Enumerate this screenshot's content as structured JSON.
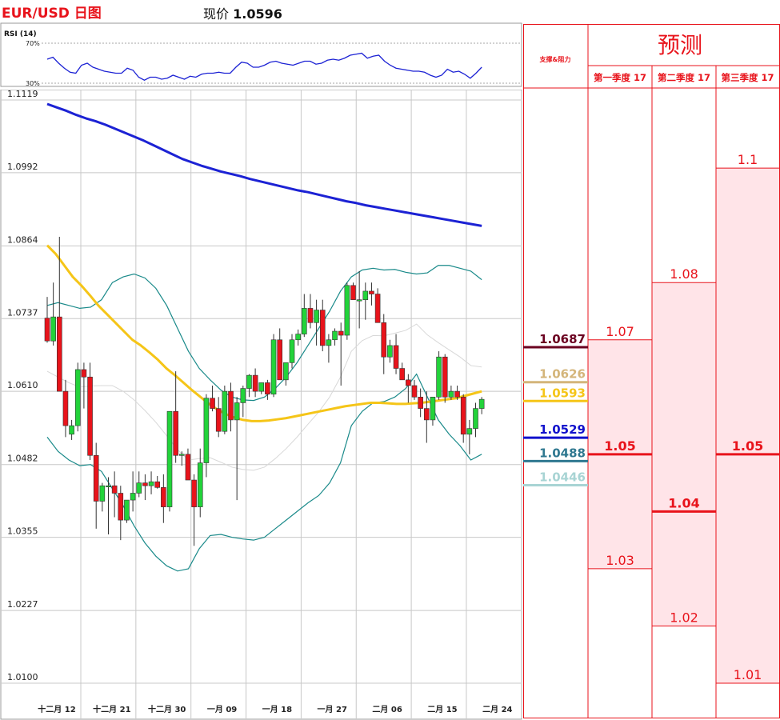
{
  "header": {
    "title": "EUR/USD 日图",
    "price_label": "现价",
    "price_value": "1.0596"
  },
  "rsi": {
    "label": "RSI (14)",
    "levels": [
      "70%",
      "30%"
    ],
    "level_values": [
      70,
      30
    ],
    "values": [
      54,
      56,
      50,
      45,
      41,
      40,
      48,
      50,
      46,
      44,
      42,
      41,
      40,
      40,
      45,
      43,
      36,
      33,
      36,
      36,
      34,
      35,
      38,
      36,
      34,
      37,
      36,
      39,
      40,
      40,
      41,
      40,
      40,
      46,
      51,
      50,
      46,
      46,
      48,
      51,
      52,
      50,
      49,
      48,
      50,
      52,
      52,
      49,
      50,
      53,
      54,
      53,
      55,
      58,
      59,
      60,
      55,
      57,
      58,
      52,
      48,
      45,
      44,
      43,
      42,
      42,
      41,
      38,
      36,
      38,
      44,
      41,
      42,
      39,
      35,
      40,
      46
    ],
    "color": "#1c22d4"
  },
  "chart_data": {
    "type": "candlestick",
    "title": "",
    "ylim": [
      1.01,
      1.1119
    ],
    "y_ticks": [
      "1.1119",
      "1.0992",
      "1.0864",
      "1.0737",
      "1.0610",
      "1.0482",
      "1.0355",
      "1.0227",
      "1.0100"
    ],
    "y_tick_values": [
      1.1119,
      1.0992,
      1.0864,
      1.0737,
      1.061,
      1.0482,
      1.0355,
      1.0227,
      1.01
    ],
    "x_ticks": [
      "十二月 12",
      "十二月 21",
      "十二月 30",
      "一月 09",
      "一月 18",
      "一月 27",
      "二月 06",
      "二月 15",
      "二月 24"
    ],
    "x_tick_index": [
      0,
      9,
      18,
      27,
      36,
      45,
      54,
      63,
      72
    ],
    "up_color": "#22d33a",
    "down_color": "#e8131b",
    "candles": [
      [
        1.0738,
        1.0775,
        1.0695,
        1.0698
      ],
      [
        1.0698,
        1.08,
        1.069,
        1.074
      ],
      [
        1.074,
        1.088,
        1.061,
        1.061
      ],
      [
        1.061,
        1.063,
        1.053,
        1.055
      ],
      [
        1.0535,
        1.056,
        1.0525,
        1.055
      ],
      [
        1.055,
        1.066,
        1.054,
        1.0648
      ],
      [
        1.0648,
        1.066,
        1.058,
        1.0635
      ],
      [
        1.0635,
        1.066,
        1.049,
        1.0498
      ],
      [
        1.0498,
        1.052,
        1.037,
        1.0418
      ],
      [
        1.0418,
        1.045,
        1.04,
        1.0445
      ],
      [
        1.0445,
        1.046,
        1.036,
        1.0445
      ],
      [
        1.0445,
        1.047,
        1.039,
        1.0432
      ],
      [
        1.0432,
        1.0445,
        1.035,
        1.0385
      ],
      [
        1.0385,
        1.042,
        1.038,
        1.042
      ],
      [
        1.042,
        1.047,
        1.04,
        1.0432
      ],
      [
        1.0432,
        1.047,
        1.0425,
        1.045
      ],
      [
        1.045,
        1.0465,
        1.042,
        1.0445
      ],
      [
        1.0445,
        1.047,
        1.043,
        1.0452
      ],
      [
        1.0452,
        1.0462,
        1.044,
        1.0442
      ],
      [
        1.0442,
        1.0465,
        1.038,
        1.0408
      ],
      [
        1.0408,
        1.0575,
        1.04,
        1.0575
      ],
      [
        1.0575,
        1.0645,
        1.0485,
        1.0498
      ],
      [
        1.0498,
        1.0505,
        1.048,
        1.05
      ],
      [
        1.05,
        1.051,
        1.046,
        1.0455
      ],
      [
        1.0455,
        1.0465,
        1.034,
        1.0408
      ],
      [
        1.0408,
        1.051,
        1.039,
        1.0485
      ],
      [
        1.0485,
        1.0605,
        1.046,
        1.0598
      ],
      [
        1.0598,
        1.062,
        1.0575,
        1.058
      ],
      [
        1.058,
        1.06,
        1.053,
        1.054
      ],
      [
        1.054,
        1.062,
        1.0535,
        1.061
      ],
      [
        1.061,
        1.0625,
        1.054,
        1.056
      ],
      [
        1.056,
        1.06,
        1.042,
        1.059
      ],
      [
        1.059,
        1.062,
        1.0565,
        1.0615
      ],
      [
        1.0615,
        1.064,
        1.06,
        1.0638
      ],
      [
        1.0638,
        1.065,
        1.06,
        1.061
      ],
      [
        1.061,
        1.0625,
        1.0605,
        1.0625
      ],
      [
        1.0625,
        1.063,
        1.0595,
        1.0605
      ],
      [
        1.0605,
        1.071,
        1.06,
        1.07
      ],
      [
        1.07,
        1.072,
        1.063,
        1.063
      ],
      [
        1.063,
        1.066,
        1.062,
        1.066
      ],
      [
        1.066,
        1.071,
        1.065,
        1.07
      ],
      [
        1.07,
        1.0718,
        1.069,
        1.071
      ],
      [
        1.071,
        1.078,
        1.0705,
        1.0755
      ],
      [
        1.0755,
        1.078,
        1.072,
        1.073
      ],
      [
        1.073,
        1.077,
        1.069,
        1.0752
      ],
      [
        1.0752,
        1.077,
        1.068,
        1.069
      ],
      [
        1.069,
        1.071,
        1.066,
        1.07
      ],
      [
        1.07,
        1.072,
        1.069,
        1.0715
      ],
      [
        1.0715,
        1.073,
        1.062,
        1.0708
      ],
      [
        1.0708,
        1.08,
        1.07,
        1.0795
      ],
      [
        1.0795,
        1.08,
        1.077,
        1.077
      ],
      [
        1.077,
        1.082,
        1.072,
        1.077
      ],
      [
        1.077,
        1.08,
        1.0735,
        1.0785
      ],
      [
        1.0785,
        1.08,
        1.076,
        1.078
      ],
      [
        1.078,
        1.079,
        1.073,
        1.073
      ],
      [
        1.073,
        1.0745,
        1.064,
        1.067
      ],
      [
        1.067,
        1.07,
        1.066,
        1.069
      ],
      [
        1.069,
        1.071,
        1.064,
        1.065
      ],
      [
        1.065,
        1.066,
        1.063,
        1.063
      ],
      [
        1.063,
        1.064,
        1.059,
        1.062
      ],
      [
        1.062,
        1.063,
        1.0595,
        1.06
      ],
      [
        1.06,
        1.0615,
        1.0565,
        1.058
      ],
      [
        1.058,
        1.061,
        1.052,
        1.056
      ],
      [
        1.056,
        1.06,
        1.055,
        1.06
      ],
      [
        1.06,
        1.068,
        1.0595,
        1.067
      ],
      [
        1.067,
        1.0675,
        1.059,
        1.06
      ],
      [
        1.06,
        1.062,
        1.0595,
        1.061
      ],
      [
        1.061,
        1.062,
        1.0595,
        1.06
      ],
      [
        1.06,
        1.0605,
        1.052,
        1.0535
      ],
      [
        1.0535,
        1.056,
        1.05,
        1.0545
      ],
      [
        1.0545,
        1.059,
        1.053,
        1.058
      ],
      [
        1.058,
        1.06,
        1.057,
        1.0596
      ]
    ],
    "ma_series": [
      {
        "color": "#1c22d4",
        "values": [
          1.1112,
          1.1106,
          1.11,
          1.1093,
          1.1087,
          1.1082,
          1.1076,
          1.1069,
          1.1062,
          1.1055,
          1.1048,
          1.104,
          1.1032,
          1.1024,
          1.1016,
          1.101,
          1.1004,
          1.0999,
          1.0994,
          1.099,
          1.0986,
          1.0981,
          1.0977,
          1.0973,
          1.0969,
          1.0965,
          1.0961,
          1.0958,
          1.0954,
          1.095,
          1.0946,
          1.0942,
          1.0939,
          1.0935,
          1.0932,
          1.0929,
          1.0926,
          1.0923,
          1.092,
          1.0917,
          1.0914,
          1.0911,
          1.0908,
          1.0905,
          1.0902,
          1.0899
        ]
      },
      {
        "color": "#f5c518",
        "values": [
          1.0865,
          1.085,
          1.083,
          1.081,
          1.0795,
          1.0778,
          1.076,
          1.0745,
          1.073,
          1.0715,
          1.07,
          1.069,
          1.0678,
          1.0665,
          1.065,
          1.0638,
          1.0625,
          1.0612,
          1.06,
          1.0588,
          1.0578,
          1.057,
          1.0564,
          1.056,
          1.0558,
          1.0558,
          1.0559,
          1.0561,
          1.0563,
          1.0566,
          1.0569,
          1.0572,
          1.0575,
          1.0578,
          1.0581,
          1.0584,
          1.0586,
          1.0588,
          1.059,
          1.059,
          1.0589,
          1.0588,
          1.0588,
          1.0589,
          1.059,
          1.0592,
          1.0594,
          1.0596,
          1.0598,
          1.0602,
          1.0606,
          1.061
        ]
      }
    ],
    "bollinger": {
      "color": "#1a8a8a",
      "upper": [
        1.076,
        1.0765,
        1.076,
        1.0755,
        1.0757,
        1.077,
        1.08,
        1.081,
        1.0815,
        1.0808,
        1.079,
        1.076,
        1.072,
        1.068,
        1.065,
        1.063,
        1.0612,
        1.06,
        1.0595,
        1.0594,
        1.06,
        1.0615,
        1.0635,
        1.066,
        1.069,
        1.072,
        1.075,
        1.0785,
        1.081,
        1.0822,
        1.0825,
        1.0822,
        1.0823,
        1.0818,
        1.0815,
        1.0817,
        1.083,
        1.083,
        1.0825,
        1.082,
        1.0805
      ],
      "lower": [
        1.053,
        1.0505,
        1.049,
        1.048,
        1.0482,
        1.047,
        1.044,
        1.041,
        1.0375,
        1.0345,
        1.0322,
        1.0305,
        1.0296,
        1.03,
        1.0335,
        1.0358,
        1.036,
        1.0355,
        1.0352,
        1.035,
        1.0355,
        1.037,
        1.0385,
        1.04,
        1.0415,
        1.0428,
        1.045,
        1.0485,
        1.055,
        1.0575,
        1.059,
        1.0592,
        1.06,
        1.0615,
        1.064,
        1.06,
        1.056,
        1.0535,
        1.0515,
        1.049,
        1.05
      ]
    },
    "mid_band_color": "#d8d8d8",
    "levels": [
      {
        "value": "1.0687",
        "num": 1.0687,
        "color": "#6b0020"
      },
      {
        "value": "1.0626",
        "num": 1.0626,
        "color": "#d4b57a"
      },
      {
        "value": "1.0593",
        "num": 1.0593,
        "color": "#f5c518"
      },
      {
        "value": "1.0529",
        "num": 1.0529,
        "color": "#1111cc"
      },
      {
        "value": "1.0488",
        "num": 1.0488,
        "color": "#2f7890"
      },
      {
        "value": "1.0446",
        "num": 1.0446,
        "color": "#a8d4d4"
      }
    ]
  },
  "forecast": {
    "sr_label": "支撑&阻力",
    "title": "预测",
    "columns": [
      {
        "name": "第一季度 17",
        "high": "1.07",
        "mid": "1.05",
        "low": "1.03",
        "high_num": 1.07,
        "mid_num": 1.05,
        "low_num": 1.03
      },
      {
        "name": "第二季度 17",
        "high": "1.08",
        "mid": "1.04",
        "low": "1.02",
        "high_num": 1.08,
        "mid_num": 1.04,
        "low_num": 1.02
      },
      {
        "name": "第三季度 17",
        "high": "1.1",
        "mid": "1.05",
        "low": "1.01",
        "high_num": 1.1,
        "mid_num": 1.05,
        "low_num": 1.01
      }
    ],
    "accent_color": "#e8131b",
    "fill_color": "#ffe4e8"
  }
}
